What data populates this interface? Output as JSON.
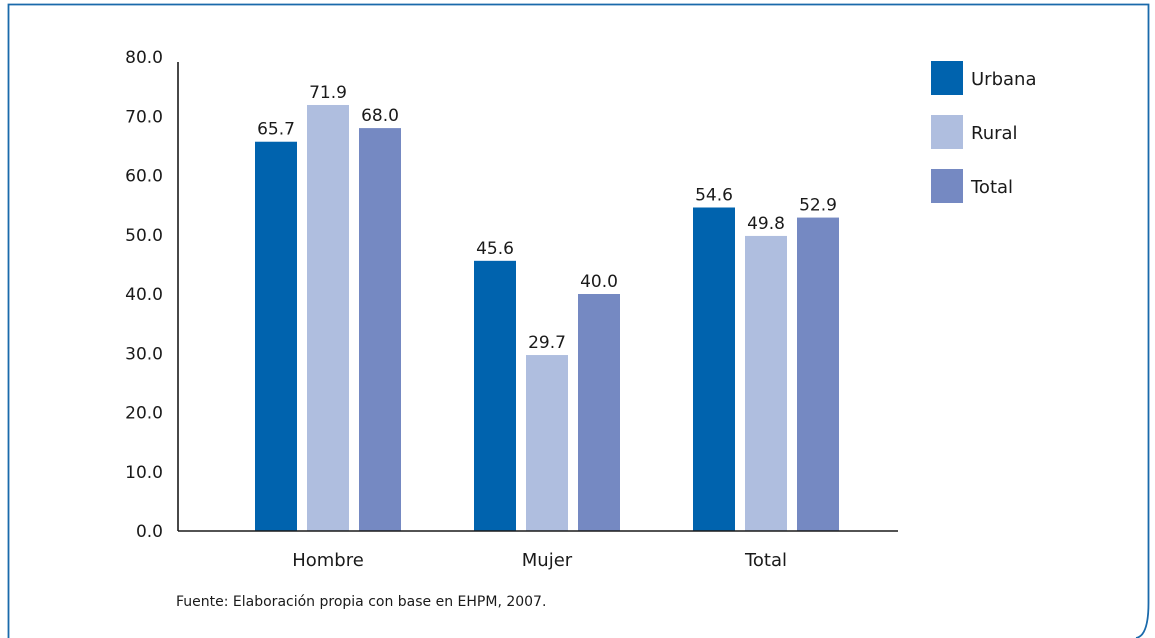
{
  "chart_data": {
    "type": "bar",
    "categories": [
      "Hombre",
      "Mujer",
      "Total"
    ],
    "series": [
      {
        "name": "Urbana",
        "values": [
          65.7,
          45.6,
          54.6
        ],
        "color": "#0063ae"
      },
      {
        "name": "Rural",
        "values": [
          71.9,
          29.7,
          49.8
        ],
        "color": "#afbedf"
      },
      {
        "name": "Total",
        "values": [
          68.0,
          40.0,
          52.9
        ],
        "color": "#7589c2"
      }
    ],
    "ylim": [
      0,
      80
    ],
    "yticks": [
      0,
      10,
      20,
      30,
      40,
      50,
      60,
      70,
      80
    ],
    "ytick_labels": [
      "0.0",
      "10.0",
      "20.0",
      "30.0",
      "40.0",
      "50.0",
      "60.0",
      "70.0",
      "80.0"
    ],
    "data_labels": [
      [
        "65.7",
        "45.6",
        "54.6"
      ],
      [
        "71.9",
        "29.7",
        "49.8"
      ],
      [
        "68.0",
        "40.0",
        "52.9"
      ]
    ],
    "legend_position": "right",
    "grid": false,
    "source": "Fuente: Elaboración propia con base en EHPM, 2007."
  },
  "frame_color": "#1a6aab"
}
